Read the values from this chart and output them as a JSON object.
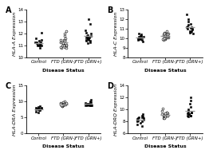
{
  "panels": [
    {
      "label": "A",
      "ylabel": "HLA-A Expression",
      "ylim": [
        10,
        14
      ],
      "yticks": [
        10,
        11,
        12,
        13,
        14
      ],
      "groups": [
        {
          "name": "Control",
          "marker": "s",
          "filled": true,
          "points": [
            11.0,
            11.1,
            11.3,
            11.2,
            11.0,
            11.4,
            11.5,
            11.1,
            11.2,
            11.0,
            10.8,
            12.1,
            11.3,
            11.6,
            11.0,
            11.1,
            11.2,
            11.3
          ]
        },
        {
          "name": "FTD (GRN-)",
          "marker": "o",
          "filled": false,
          "points": [
            12.2,
            12.0,
            11.5,
            11.8,
            11.2,
            11.0,
            11.3,
            10.9,
            10.8,
            11.4,
            11.1,
            10.8,
            11.5,
            11.6,
            11.0,
            11.3,
            11.2,
            11.5,
            11.0,
            10.9,
            11.1,
            11.4,
            11.2
          ]
        },
        {
          "name": "FTD (GRN+)",
          "marker": "s",
          "filled": true,
          "points": [
            13.2,
            12.8,
            12.3,
            12.1,
            11.8,
            11.6,
            11.9,
            11.7,
            11.5,
            11.6,
            11.4,
            11.3,
            11.8,
            11.5,
            11.7,
            11.6,
            11.2,
            11.4,
            12.0,
            11.7
          ]
        }
      ]
    },
    {
      "label": "B",
      "ylabel": "HLA-C Expression",
      "ylim": [
        8,
        13
      ],
      "yticks": [
        8,
        9,
        10,
        11,
        12,
        13
      ],
      "groups": [
        {
          "name": "Control",
          "marker": "s",
          "filled": true,
          "points": [
            10.5,
            10.2,
            10.0,
            9.8,
            10.3,
            10.1,
            9.9,
            10.2,
            10.4,
            9.7,
            10.1,
            10.0,
            9.8,
            10.3,
            10.2,
            9.9
          ]
        },
        {
          "name": "FTD (GRN-)",
          "marker": "o",
          "filled": false,
          "points": [
            10.8,
            10.5,
            10.3,
            10.1,
            9.9,
            10.4,
            10.2,
            10.6,
            10.0,
            10.3,
            10.5,
            10.2,
            9.8,
            10.4,
            10.1,
            10.3,
            10.5,
            9.9,
            10.2,
            10.0,
            10.4,
            10.3
          ]
        },
        {
          "name": "FTD (GRN+)",
          "marker": "s",
          "filled": true,
          "points": [
            12.5,
            12.0,
            11.8,
            11.5,
            11.3,
            11.0,
            10.8,
            11.2,
            10.9,
            11.1,
            10.7,
            10.8,
            11.4,
            11.0,
            10.6,
            11.2,
            10.5
          ]
        }
      ]
    },
    {
      "label": "C",
      "ylabel": "HLA-DRA Expression",
      "ylim": [
        0,
        15
      ],
      "yticks": [
        0,
        5,
        10,
        15
      ],
      "groups": [
        {
          "name": "Control",
          "marker": "s",
          "filled": true,
          "points": [
            8.5,
            7.9,
            7.5,
            8.2,
            7.8,
            7.6,
            8.0,
            7.4,
            7.9,
            8.1,
            7.7,
            7.8,
            7.5,
            7.9,
            6.5,
            6.8,
            7.2,
            7.6
          ]
        },
        {
          "name": "FTD (GRN-)",
          "marker": "o",
          "filled": false,
          "points": [
            10.2,
            9.8,
            9.5,
            9.2,
            9.0,
            8.8,
            8.5,
            9.3,
            8.9,
            9.1,
            8.7,
            9.4,
            8.6,
            9.2,
            9.0,
            8.8,
            9.5,
            9.1,
            8.9,
            9.3,
            8.7
          ]
        },
        {
          "name": "FTD (GRN+)",
          "marker": "s",
          "filled": true,
          "points": [
            10.5,
            10.1,
            9.8,
            9.5,
            9.2,
            9.0,
            8.8,
            9.4,
            9.0,
            9.3,
            8.9,
            9.5,
            8.7,
            9.2,
            9.0,
            8.8,
            9.3,
            8.9,
            9.1,
            9.4,
            8.7
          ]
        }
      ]
    },
    {
      "label": "D",
      "ylabel": "HLA-DRQ Expression",
      "ylim": [
        6,
        14
      ],
      "yticks": [
        6,
        8,
        10,
        12,
        14
      ],
      "groups": [
        {
          "name": "Control",
          "marker": "s",
          "filled": true,
          "points": [
            9.2,
            8.8,
            8.5,
            8.2,
            8.0,
            8.7,
            8.3,
            8.6,
            8.1,
            8.9,
            8.4,
            8.7,
            7.8,
            7.5,
            7.2,
            8.0
          ]
        },
        {
          "name": "FTD (GRN-)",
          "marker": "o",
          "filled": false,
          "points": [
            10.2,
            9.8,
            9.5,
            9.2,
            9.0,
            8.8,
            8.5,
            9.3,
            8.9,
            9.1,
            8.7,
            9.4,
            8.6,
            9.2,
            9.0,
            8.8,
            9.5,
            9.1,
            8.9,
            9.3
          ]
        },
        {
          "name": "FTD (GRN+)",
          "marker": "s",
          "filled": true,
          "points": [
            12.0,
            11.5,
            11.0,
            10.5,
            10.0,
            9.5,
            9.2,
            9.8,
            9.4,
            9.7,
            9.0,
            9.5,
            8.8,
            9.3,
            9.0,
            9.2,
            8.9
          ]
        }
      ]
    }
  ],
  "xlabel": "Disease Status",
  "xtick_labels": [
    "Control",
    "FTD (GRN-)",
    "FTD (GRN+)"
  ],
  "ylabel_fontsize": 4.5,
  "tick_fontsize": 4.0,
  "xlabel_fontsize": 4.5,
  "panel_label_fontsize": 7,
  "marker_size": 3.5,
  "jitter": 0.13,
  "line_color": "#999999",
  "line_width": 1.0,
  "mean_line_halfwidth": 0.18,
  "bg_color": "white",
  "dot_color_filled": "black",
  "dot_color_open": "white",
  "dot_edgecolor": "black",
  "edge_linewidth": 0.4
}
